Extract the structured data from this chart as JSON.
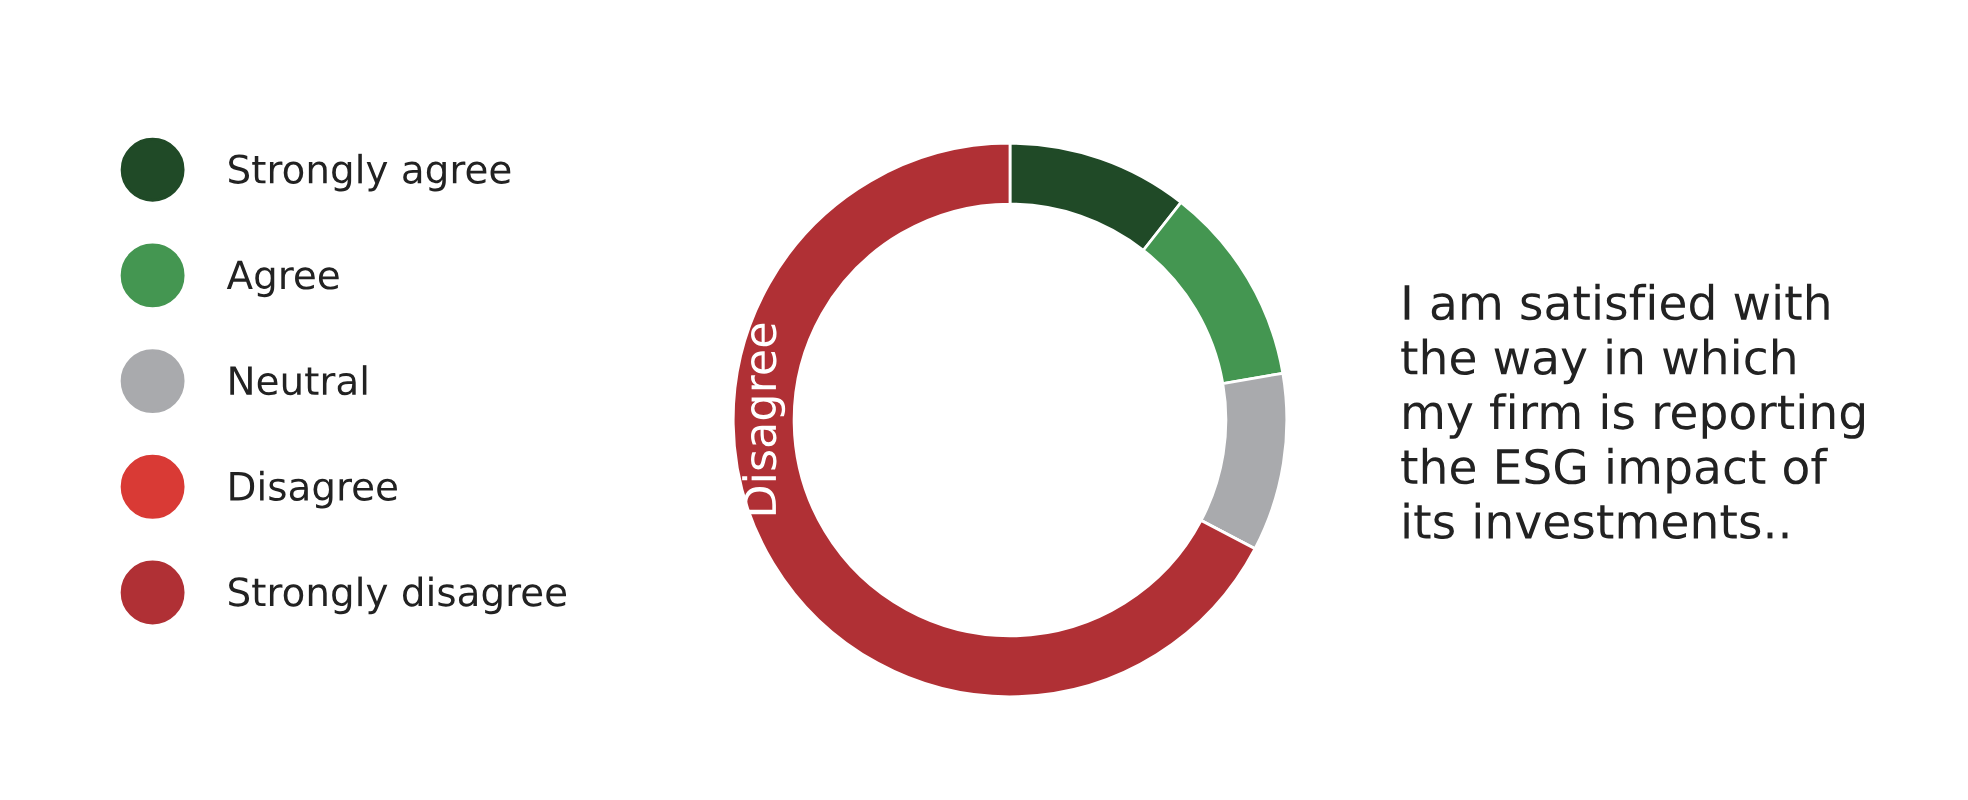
{
  "chart_data": {
    "type": "donut",
    "title": "I am satisfied with\nthe way in which\nmy firm is reporting\nthe ESG impact of\nits investments..",
    "categories": [
      "Strongly agree",
      "Agree",
      "Neutral",
      "Disagree",
      "Strongly disagree"
    ],
    "values": [
      10.6,
      11.7,
      10.4,
      0,
      67.3
    ],
    "colors": [
      "#204a27",
      "#449651",
      "#a9aaad",
      "#d93a35",
      "#b03035"
    ],
    "annotations": [
      "Disagree"
    ],
    "legend": "left"
  }
}
